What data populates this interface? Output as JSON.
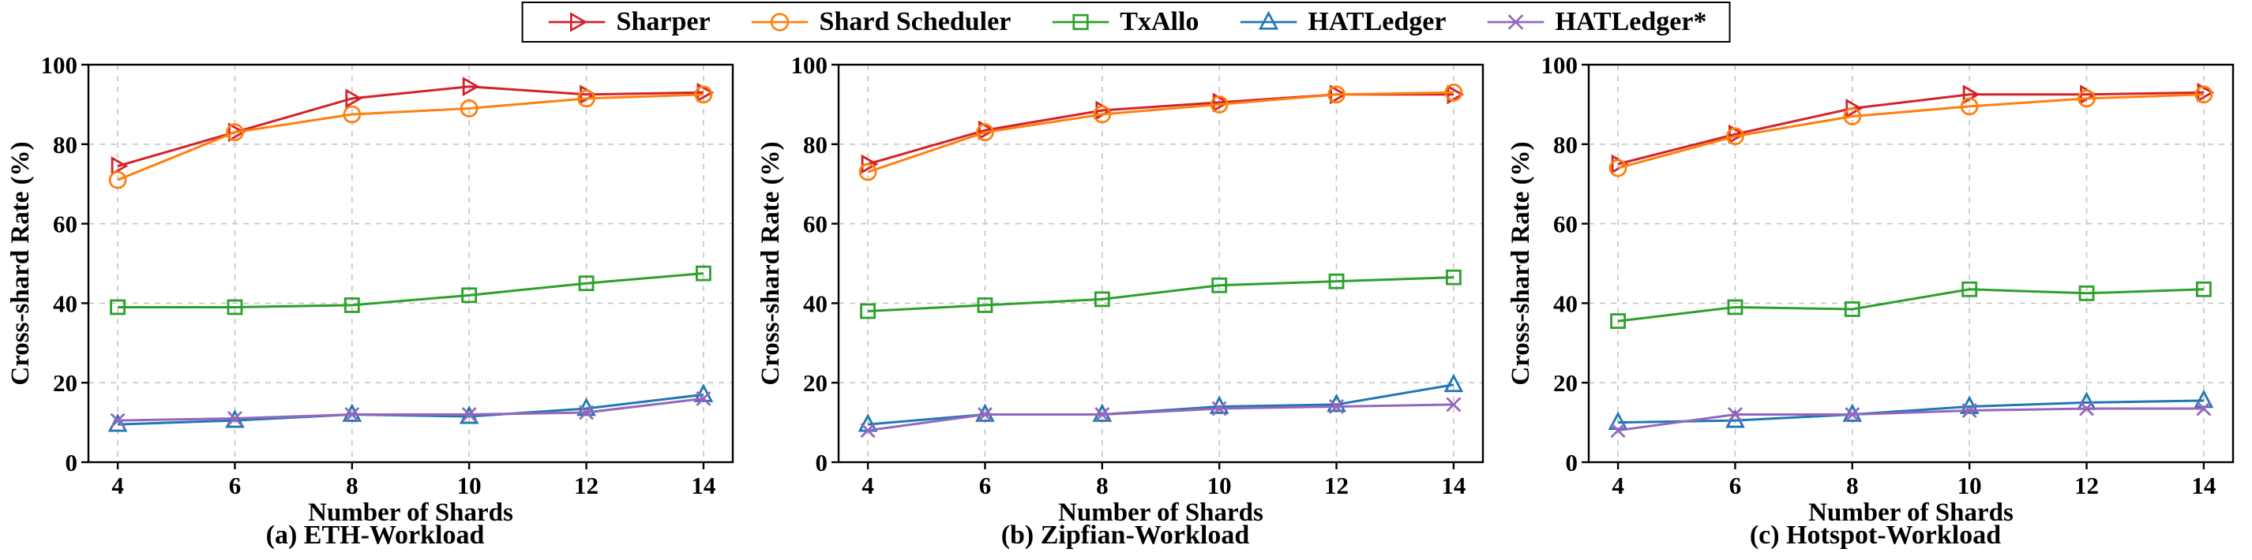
{
  "legend": {
    "items": [
      {
        "label": "Sharper",
        "color": "#d2232a",
        "marker": "triangle-right"
      },
      {
        "label": "Shard Scheduler",
        "color": "#ff7f0e",
        "marker": "circle"
      },
      {
        "label": "TxAllo",
        "color": "#2ca02c",
        "marker": "square"
      },
      {
        "label": "HATLedger",
        "color": "#1f77b4",
        "marker": "triangle-up"
      },
      {
        "label": "HATLedger*",
        "color": "#9467bd",
        "marker": "x"
      }
    ]
  },
  "chart_data": [
    {
      "type": "line",
      "title": "(a) ETH-Workload",
      "xlabel": "Number of Shards",
      "ylabel": "Cross-shard Rate (%)",
      "x": [
        4,
        6,
        8,
        10,
        12,
        14
      ],
      "xlim": [
        3.5,
        14.5
      ],
      "ylim": [
        0,
        100
      ],
      "yticks": [
        0,
        20,
        40,
        60,
        80,
        100
      ],
      "grid": true,
      "legend_position": "top-outside-shared",
      "series": [
        {
          "name": "Sharper",
          "color": "#d2232a",
          "marker": "triangle-right",
          "values": [
            74.5,
            83,
            91.5,
            94.5,
            92.5,
            93
          ]
        },
        {
          "name": "Shard Scheduler",
          "color": "#ff7f0e",
          "marker": "circle",
          "values": [
            71,
            83,
            87.5,
            89,
            91.5,
            92.5
          ]
        },
        {
          "name": "TxAllo",
          "color": "#2ca02c",
          "marker": "square",
          "values": [
            39,
            39,
            39.5,
            42,
            45,
            47.5
          ]
        },
        {
          "name": "HATLedger",
          "color": "#1f77b4",
          "marker": "triangle-up",
          "values": [
            9.5,
            10.5,
            12,
            11.5,
            13.5,
            17
          ]
        },
        {
          "name": "HATLedger*",
          "color": "#9467bd",
          "marker": "x",
          "values": [
            10.5,
            11,
            12,
            12,
            12.5,
            16
          ]
        }
      ]
    },
    {
      "type": "line",
      "title": "(b) Zipfian-Workload",
      "xlabel": "Number of Shards",
      "ylabel": "Cross-shard Rate (%)",
      "x": [
        4,
        6,
        8,
        10,
        12,
        14
      ],
      "xlim": [
        3.5,
        14.5
      ],
      "ylim": [
        0,
        100
      ],
      "yticks": [
        0,
        20,
        40,
        60,
        80,
        100
      ],
      "grid": true,
      "legend_position": "top-outside-shared",
      "series": [
        {
          "name": "Sharper",
          "color": "#d2232a",
          "marker": "triangle-right",
          "values": [
            75,
            83.5,
            88.5,
            90.5,
            92.5,
            92.5
          ]
        },
        {
          "name": "Shard Scheduler",
          "color": "#ff7f0e",
          "marker": "circle",
          "values": [
            73,
            83,
            87.5,
            90,
            92.5,
            93
          ]
        },
        {
          "name": "TxAllo",
          "color": "#2ca02c",
          "marker": "square",
          "values": [
            38,
            39.5,
            41,
            44.5,
            45.5,
            46.5
          ]
        },
        {
          "name": "HATLedger",
          "color": "#1f77b4",
          "marker": "triangle-up",
          "values": [
            9.5,
            12,
            12,
            14,
            14.5,
            19.5
          ]
        },
        {
          "name": "HATLedger*",
          "color": "#9467bd",
          "marker": "x",
          "values": [
            8,
            12,
            12,
            13.5,
            14,
            14.5
          ]
        }
      ]
    },
    {
      "type": "line",
      "title": "(c) Hotspot-Workload",
      "xlabel": "Number of Shards",
      "ylabel": "Cross-shard Rate (%)",
      "x": [
        4,
        6,
        8,
        10,
        12,
        14
      ],
      "xlim": [
        3.5,
        14.5
      ],
      "ylim": [
        0,
        100
      ],
      "yticks": [
        0,
        20,
        40,
        60,
        80,
        100
      ],
      "grid": true,
      "legend_position": "top-outside-shared",
      "series": [
        {
          "name": "Sharper",
          "color": "#d2232a",
          "marker": "triangle-right",
          "values": [
            75,
            82.5,
            89,
            92.5,
            92.5,
            93
          ]
        },
        {
          "name": "Shard Scheduler",
          "color": "#ff7f0e",
          "marker": "circle",
          "values": [
            74,
            82,
            87,
            89.5,
            91.5,
            92.5
          ]
        },
        {
          "name": "TxAllo",
          "color": "#2ca02c",
          "marker": "square",
          "values": [
            35.5,
            39,
            38.5,
            43.5,
            42.5,
            43.5
          ]
        },
        {
          "name": "HATLedger",
          "color": "#1f77b4",
          "marker": "triangle-up",
          "values": [
            10,
            10.5,
            12,
            14,
            15,
            15.5
          ]
        },
        {
          "name": "HATLedger*",
          "color": "#9467bd",
          "marker": "x",
          "values": [
            8,
            12,
            12,
            13,
            13.5,
            13.5
          ]
        }
      ]
    }
  ]
}
